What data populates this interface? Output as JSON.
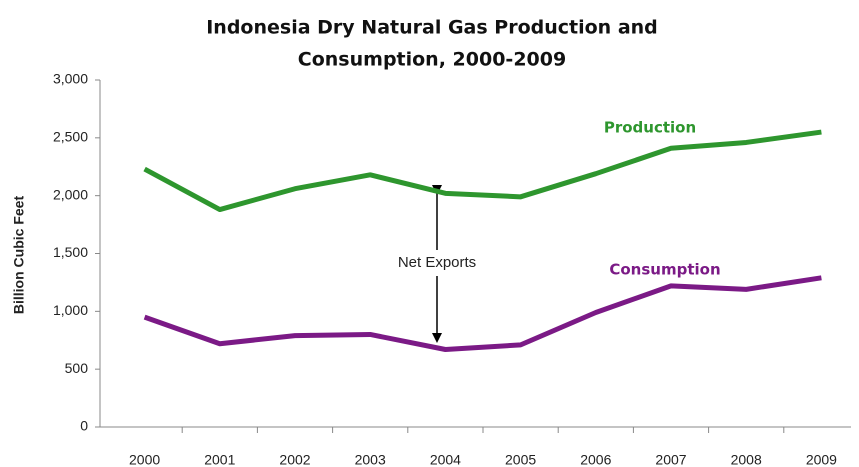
{
  "chart_data": {
    "type": "line",
    "title": "Indonesia Dry Natural Gas Production and",
    "subtitle": "Consumption, 2000-2009",
    "y_label": "Billion Cubic Feet",
    "annotations": [
      "Net Exports"
    ],
    "categories": [
      "2000",
      "2001",
      "2002",
      "2003",
      "2004",
      "2005",
      "2006",
      "2007",
      "2008",
      "2009"
    ],
    "series": [
      {
        "name": "Production",
        "color": "#2e962e",
        "values": [
          2230,
          1880,
          2060,
          2180,
          2020,
          1990,
          2190,
          2410,
          2460,
          2550
        ]
      },
      {
        "name": "Consumption",
        "color": "#7b1a86",
        "values": [
          950,
          720,
          790,
          800,
          670,
          710,
          990,
          1220,
          1190,
          1290
        ]
      }
    ],
    "ylim": [
      0,
      3000
    ],
    "yticks": [
      0,
      500,
      {
        "value": 1000,
        "label": "1,000"
      },
      {
        "value": 1500,
        "label": "1,500"
      },
      {
        "value": 2000,
        "label": "2,000"
      },
      {
        "value": 2500,
        "label": "2,500"
      },
      {
        "value": 3000,
        "label": "3,000"
      }
    ]
  }
}
